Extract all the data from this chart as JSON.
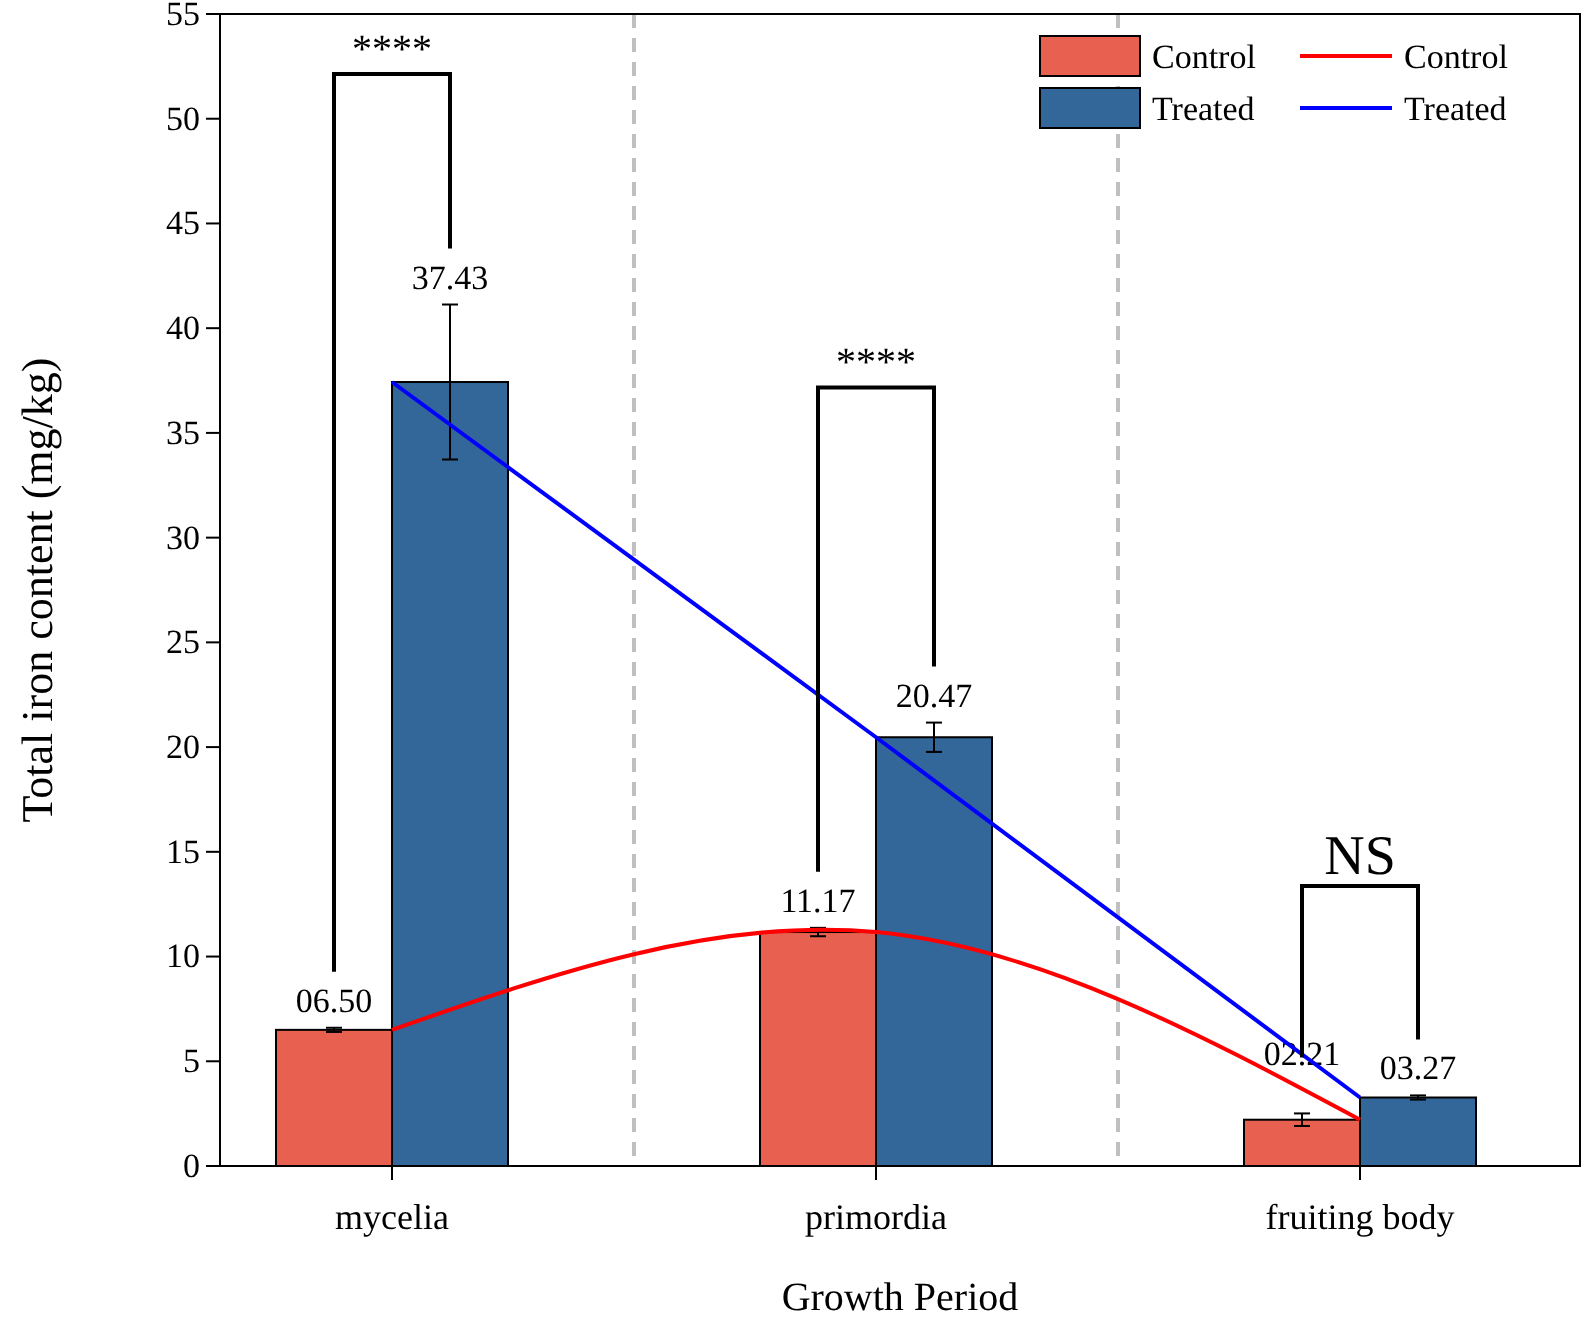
{
  "chart_data": {
    "type": "bar",
    "xlabel": "Growth Period",
    "ylabel": "Total iron content (mg/kg)",
    "categories": [
      "mycelia",
      "primordia",
      "fruiting body"
    ],
    "series": [
      {
        "name": "Control",
        "color": "#e8604f",
        "values": [
          6.5,
          11.17,
          2.21
        ],
        "value_labels": [
          "06.50",
          "11.17",
          "02.21"
        ],
        "errors": [
          0.1,
          0.2,
          0.3
        ]
      },
      {
        "name": "Treated",
        "color": "#336699",
        "values": [
          37.43,
          20.47,
          3.27
        ],
        "value_labels": [
          "37.43",
          "20.47",
          "03.27"
        ],
        "errors": [
          3.7,
          0.7,
          0.1
        ]
      },
      {
        "name": "Control",
        "type": "line",
        "color": "#ff0000",
        "values": [
          6.5,
          11.17,
          2.21
        ]
      },
      {
        "name": "Treated",
        "type": "line",
        "color": "#0000ff",
        "values": [
          37.43,
          20.47,
          3.27
        ]
      }
    ],
    "ylim": [
      0,
      55
    ],
    "yticks": [
      0,
      5,
      10,
      15,
      20,
      25,
      30,
      35,
      40,
      45,
      50,
      55
    ],
    "grid": false,
    "legend": "top right",
    "marker": "none",
    "line_style": "solid",
    "annotations": [
      "****",
      "****",
      "NS"
    ]
  }
}
